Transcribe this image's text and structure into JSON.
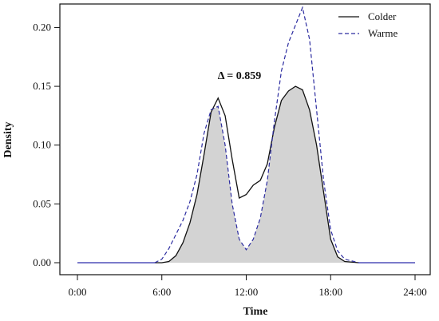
{
  "chart_data": {
    "type": "area",
    "title": "",
    "xlabel": "Time",
    "ylabel": "Density",
    "x_ticks": [
      "0:00",
      "6:00",
      "12:00",
      "18:00",
      "24:00"
    ],
    "y_ticks": [
      "0.00",
      "0.05",
      "0.10",
      "0.15",
      "0.20"
    ],
    "xlim": [
      0,
      24
    ],
    "ylim": [
      0,
      0.22
    ],
    "grid": false,
    "legend_position": "top-right",
    "annotation": "Δ = 0.859",
    "colors": {
      "overlap_fill": "#d3d3d3",
      "colder_line": "#111111",
      "warme_line": "#2c2ca0",
      "warme_tail_line": "#5050d0"
    },
    "series": [
      {
        "name": "Colder",
        "style": "solid",
        "x": [
          0,
          6,
          6.5,
          7,
          7.5,
          8,
          8.5,
          9,
          9.5,
          10,
          10.5,
          11,
          11.5,
          12,
          12.5,
          13,
          13.5,
          14,
          14.5,
          15,
          15.5,
          16,
          16.5,
          17,
          17.5,
          18,
          18.5,
          19,
          20,
          24
        ],
        "values": [
          0,
          0,
          0.001,
          0.006,
          0.017,
          0.034,
          0.058,
          0.092,
          0.128,
          0.14,
          0.125,
          0.088,
          0.055,
          0.058,
          0.066,
          0.07,
          0.084,
          0.115,
          0.138,
          0.146,
          0.15,
          0.147,
          0.13,
          0.1,
          0.06,
          0.02,
          0.005,
          0.001,
          0,
          0
        ]
      },
      {
        "name": "Warme",
        "style": "dashed",
        "x": [
          0,
          5.5,
          6,
          6.5,
          7,
          7.5,
          8,
          8.5,
          9,
          9.5,
          10,
          10.5,
          11,
          11.5,
          12,
          12.5,
          13,
          13.5,
          14,
          14.5,
          15,
          15.5,
          16,
          16.5,
          17,
          17.5,
          18,
          18.5,
          19,
          20,
          24
        ],
        "values": [
          0,
          0,
          0.003,
          0.012,
          0.024,
          0.036,
          0.052,
          0.075,
          0.11,
          0.13,
          0.133,
          0.1,
          0.05,
          0.02,
          0.011,
          0.02,
          0.038,
          0.07,
          0.12,
          0.163,
          0.187,
          0.202,
          0.217,
          0.19,
          0.13,
          0.07,
          0.028,
          0.01,
          0.003,
          0,
          0
        ]
      }
    ]
  }
}
